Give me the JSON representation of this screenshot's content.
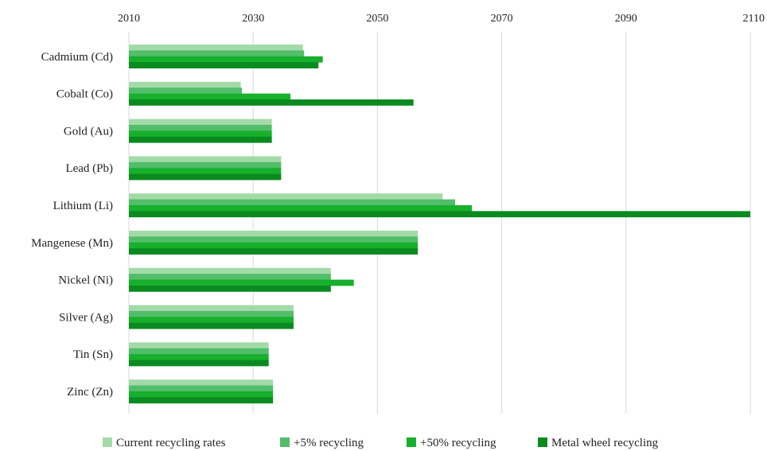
{
  "chart_data": {
    "type": "bar",
    "orientation": "horizontal",
    "title": "",
    "xlabel": "",
    "ylabel": "",
    "xlim": [
      2010,
      2110
    ],
    "x_ticks": [
      "2010",
      "2030",
      "2050",
      "2070",
      "2090",
      "2110"
    ],
    "grid": "vertical",
    "legend_position": "bottom",
    "categories": [
      "Cadmium (Cd)",
      "Cobalt (Co)",
      "Gold (Au)",
      "Lead (Pb)",
      "Lithium (Li)",
      "Mangenese (Mn)",
      "Nickel (Ni)",
      "Silver (Ag)",
      "Tin (Sn)",
      "Zinc (Zn)"
    ],
    "series": [
      {
        "name": "Current recycling rates",
        "color": "#a3dba8",
        "values": [
          2038,
          2028,
          2033,
          2034.5,
          2060.5,
          2056.5,
          2042.5,
          2036.5,
          2032.5,
          2033.2
        ]
      },
      {
        "name": "+5% recycling",
        "color": "#52bd6a",
        "values": [
          2038.2,
          2028.2,
          2033,
          2034.5,
          2062.5,
          2056.5,
          2042.5,
          2036.5,
          2032.5,
          2033.2
        ]
      },
      {
        "name": "+50% recycling",
        "color": "#17b02c",
        "values": [
          2041.2,
          2036,
          2033,
          2034.5,
          2065.2,
          2056.5,
          2046.2,
          2036.5,
          2032.5,
          2033.2
        ]
      },
      {
        "name": "Metal wheel recycling",
        "color": "#0a8a1f",
        "values": [
          2040.5,
          2055.8,
          2033,
          2034.5,
          2110,
          2056.5,
          2042.5,
          2036.5,
          2032.5,
          2033.2
        ]
      }
    ]
  }
}
